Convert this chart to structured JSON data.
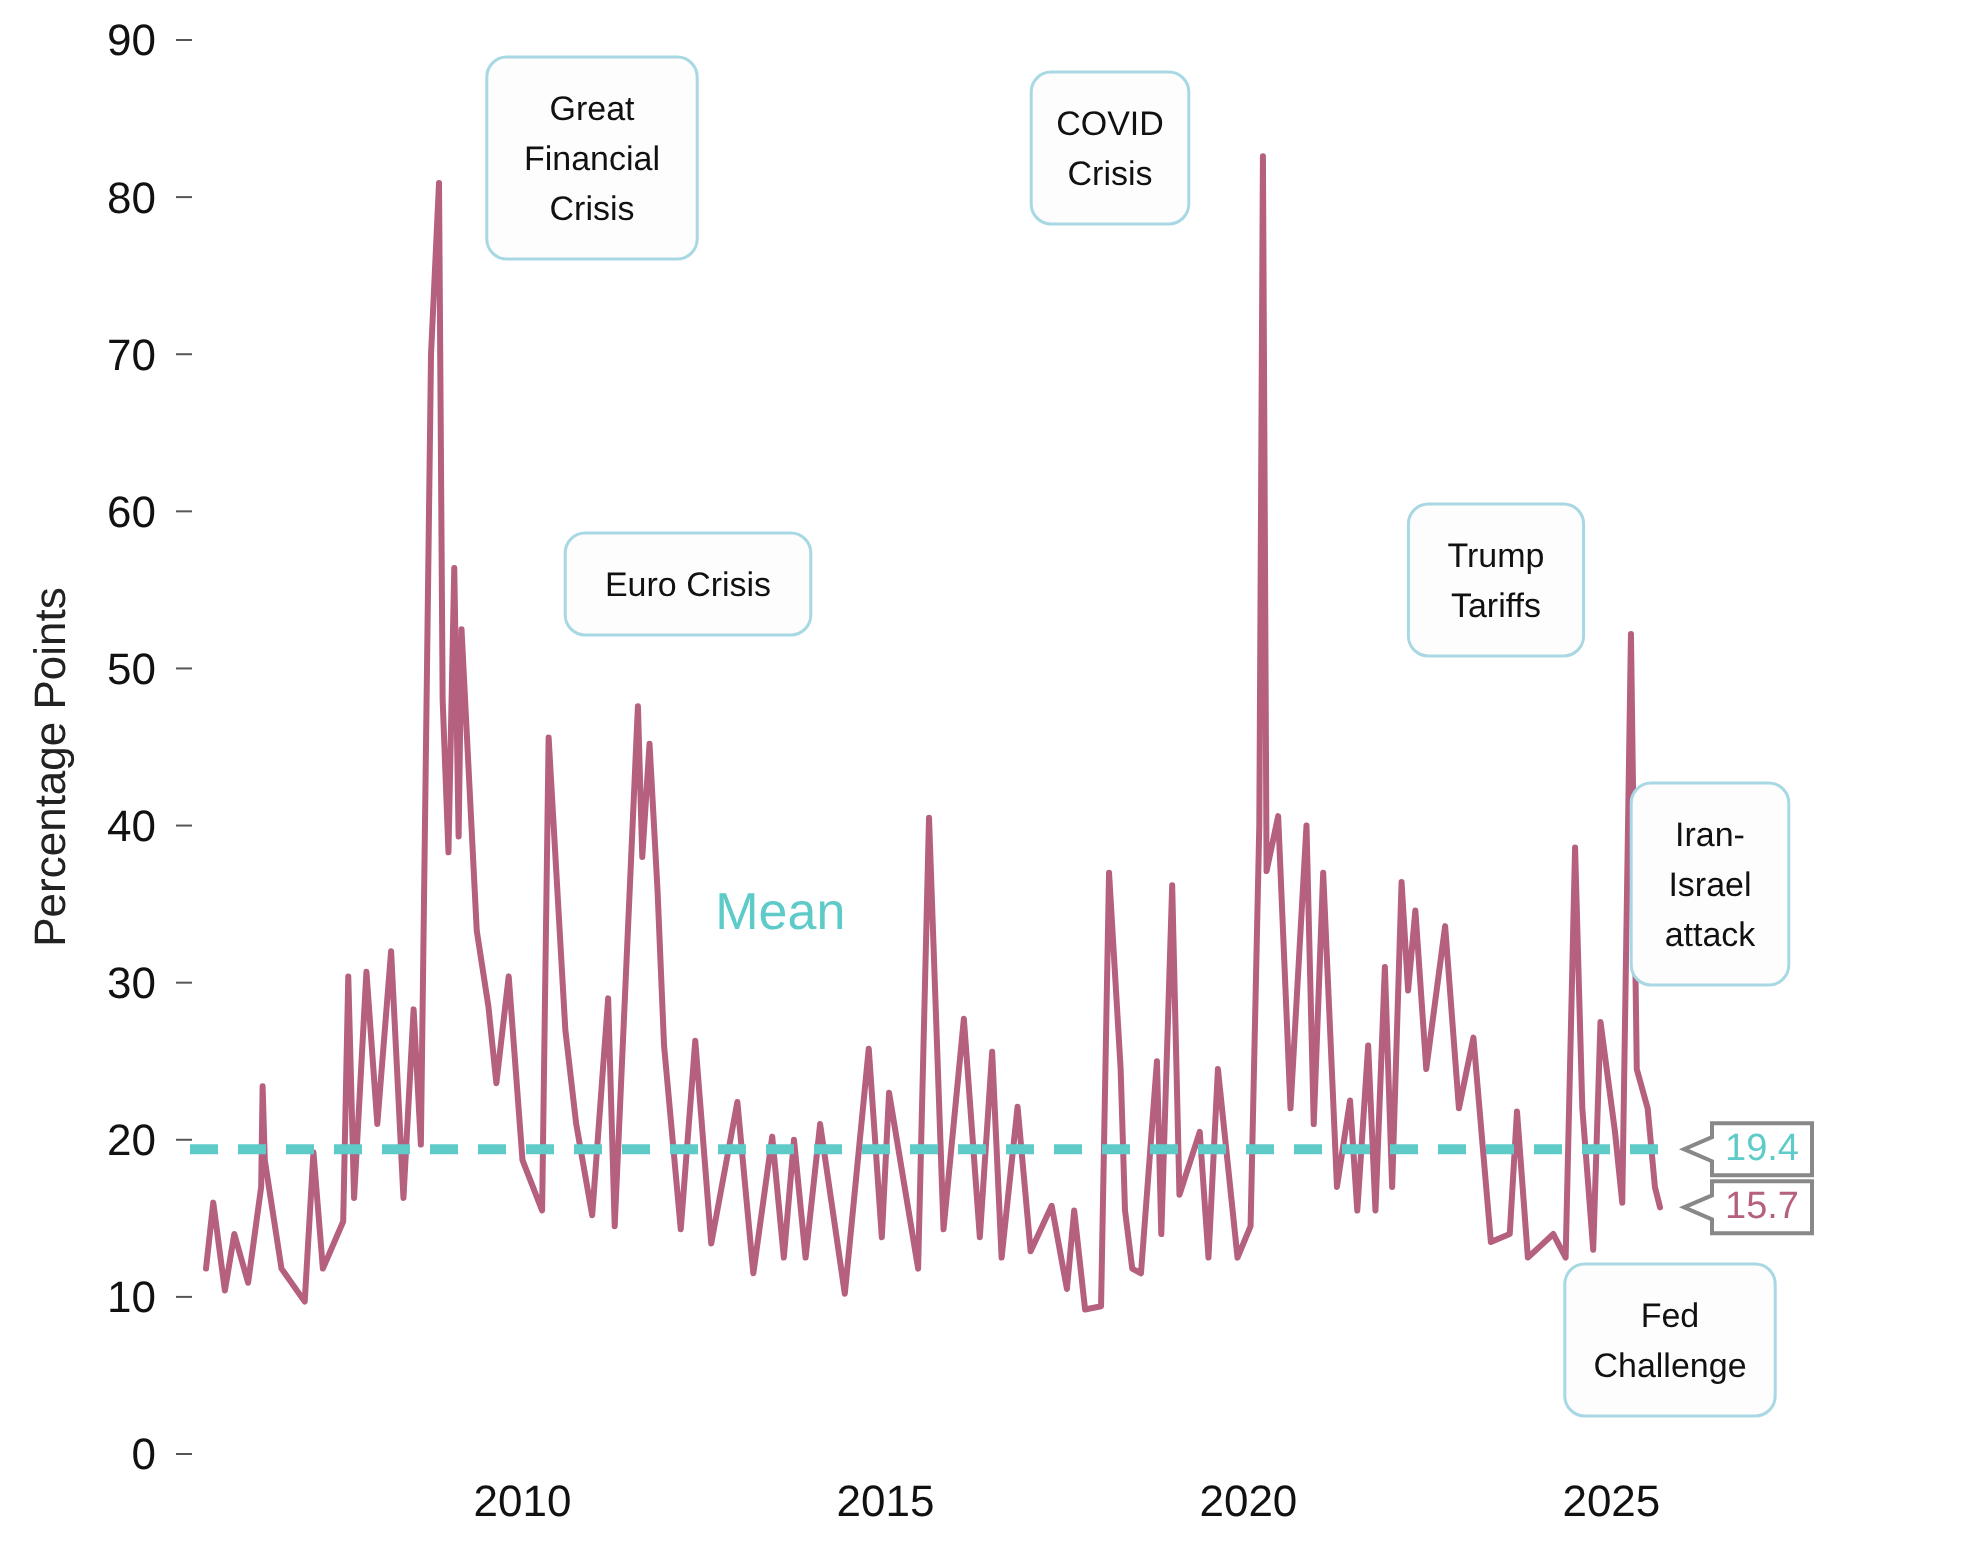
{
  "chart_data": {
    "type": "line",
    "ylabel": "Percentage Points",
    "series": [
      {
        "color": "#b5607f",
        "x": [
          2005.64,
          2005.74,
          2005.9,
          2006.03,
          2006.22,
          2006.4,
          2006.42,
          2006.45,
          2006.68,
          2007.0,
          2007.12,
          2007.25,
          2007.53,
          2007.6,
          2007.68,
          2007.85,
          2008.0,
          2008.19,
          2008.36,
          2008.5,
          2008.6,
          2008.74,
          2008.85,
          2008.9,
          2008.98,
          2009.06,
          2009.12,
          2009.16,
          2009.37,
          2009.53,
          2009.64,
          2009.81,
          2010.0,
          2010.27,
          2010.36,
          2010.59,
          2010.74,
          2010.96,
          2011.18,
          2011.27,
          2011.59,
          2011.65,
          2011.75,
          2011.86,
          2011.95,
          2012.18,
          2012.38,
          2012.6,
          2012.96,
          2013.18,
          2013.44,
          2013.6,
          2013.74,
          2013.9,
          2014.1,
          2014.44,
          2014.77,
          2014.95,
          2015.05,
          2015.45,
          2015.6,
          2015.8,
          2016.08,
          2016.3,
          2016.47,
          2016.6,
          2016.82,
          2017.0,
          2017.29,
          2017.5,
          2017.6,
          2017.75,
          2017.97,
          2018.08,
          2018.24,
          2018.3,
          2018.4,
          2018.52,
          2018.74,
          2018.8,
          2018.95,
          2019.05,
          2019.33,
          2019.45,
          2019.58,
          2019.85,
          2020.03,
          2020.15,
          2020.2,
          2020.22,
          2020.25,
          2020.41,
          2020.58,
          2020.8,
          2020.9,
          2021.03,
          2021.22,
          2021.4,
          2021.5,
          2021.65,
          2021.75,
          2021.88,
          2021.98,
          2022.11,
          2022.2,
          2022.3,
          2022.45,
          2022.71,
          2022.9,
          2023.1,
          2023.34,
          2023.6,
          2023.7,
          2023.85,
          2024.2,
          2024.37,
          2024.5,
          2024.6,
          2024.75,
          2024.85,
          2025.05,
          2025.15,
          2025.27,
          2025.35,
          2025.5,
          2025.6,
          2025.67
        ],
        "values": [
          11.8,
          16,
          10.4,
          14,
          10.9,
          17,
          23.4,
          18.7,
          11.8,
          9.7,
          19.2,
          11.8,
          14.8,
          30.4,
          16.3,
          30.7,
          21,
          32,
          16.3,
          28.3,
          19.7,
          70,
          80.9,
          48,
          38.3,
          56.4,
          39.3,
          52.5,
          33.3,
          28.5,
          23.6,
          30.4,
          18.7,
          15.5,
          45.6,
          27,
          21,
          15.2,
          29,
          14.5,
          47.6,
          38,
          45.2,
          35.9,
          26,
          14.3,
          26.3,
          13.4,
          22.4,
          11.5,
          20.2,
          12.5,
          20,
          12.5,
          21,
          10.2,
          25.8,
          13.8,
          23,
          11.8,
          40.5,
          14.3,
          27.7,
          13.8,
          25.6,
          12.5,
          22.1,
          12.9,
          15.8,
          10.5,
          15.5,
          9.2,
          9.4,
          37,
          24.5,
          15.5,
          11.8,
          11.5,
          25,
          14,
          36.2,
          16.5,
          20.5,
          12.5,
          24.5,
          12.5,
          14.5,
          40,
          82.6,
          64.8,
          37.1,
          40.6,
          22,
          40,
          21,
          37,
          17,
          22.5,
          15.5,
          26,
          15.5,
          31,
          17,
          36.4,
          29.5,
          34.6,
          24.5,
          33.6,
          22,
          26.5,
          13.5,
          14,
          21.8,
          12.5,
          14,
          12.5,
          38.6,
          22,
          13,
          27.5,
          20.5,
          16,
          52.2,
          24.5,
          22,
          17,
          15.7
        ],
        "value_labels": [
          null,
          null,
          null,
          null,
          null,
          null,
          null,
          null,
          null,
          null,
          null,
          null,
          null,
          null,
          null,
          null,
          null,
          null,
          null,
          null,
          null,
          null,
          null,
          null,
          null,
          null,
          null,
          null,
          null,
          null,
          null,
          null,
          null,
          null,
          null,
          null,
          null,
          null,
          null,
          null,
          null,
          null,
          null,
          null,
          null,
          null,
          null,
          null,
          null,
          null,
          null,
          null,
          null,
          null,
          null,
          null,
          null,
          null,
          null,
          null,
          null,
          null,
          null,
          null,
          null,
          null,
          null,
          null,
          null,
          null,
          null,
          null,
          null,
          null,
          null,
          null,
          null,
          null,
          null,
          null,
          null,
          null,
          null,
          null,
          null,
          null,
          null,
          null,
          null,
          null,
          null,
          null,
          null,
          null,
          null,
          null,
          null,
          null,
          null,
          null,
          null,
          null,
          null,
          null,
          null,
          null,
          null,
          null,
          null,
          null,
          null,
          null,
          null,
          null,
          null,
          null,
          null,
          null,
          null,
          null,
          null,
          null,
          null,
          null,
          null,
          null,
          "15.7"
        ]
      }
    ],
    "xlim": [
      2005.64,
      2025.67
    ],
    "xticks": [
      2010,
      2015,
      2020,
      2025
    ],
    "ylim": [
      0,
      90
    ],
    "yticks": [
      0,
      10,
      20,
      30,
      40,
      50,
      60,
      70,
      80,
      90
    ],
    "grid": false,
    "marker": "none",
    "line_style": "solid",
    "ref_lines": [
      {
        "axis": "y",
        "value": 19.4,
        "label": "Mean",
        "color": "#5ecbc8",
        "line_style": "dashed"
      }
    ],
    "annotations": [
      "Great Financial Crisis",
      "Euro Crisis",
      "COVID Crisis",
      "Trump Tariffs",
      "Iran-Israel attack",
      "Fed Challenge",
      {
        "text": "19.4",
        "x": 2025.67,
        "y": 19.4
      }
    ]
  }
}
